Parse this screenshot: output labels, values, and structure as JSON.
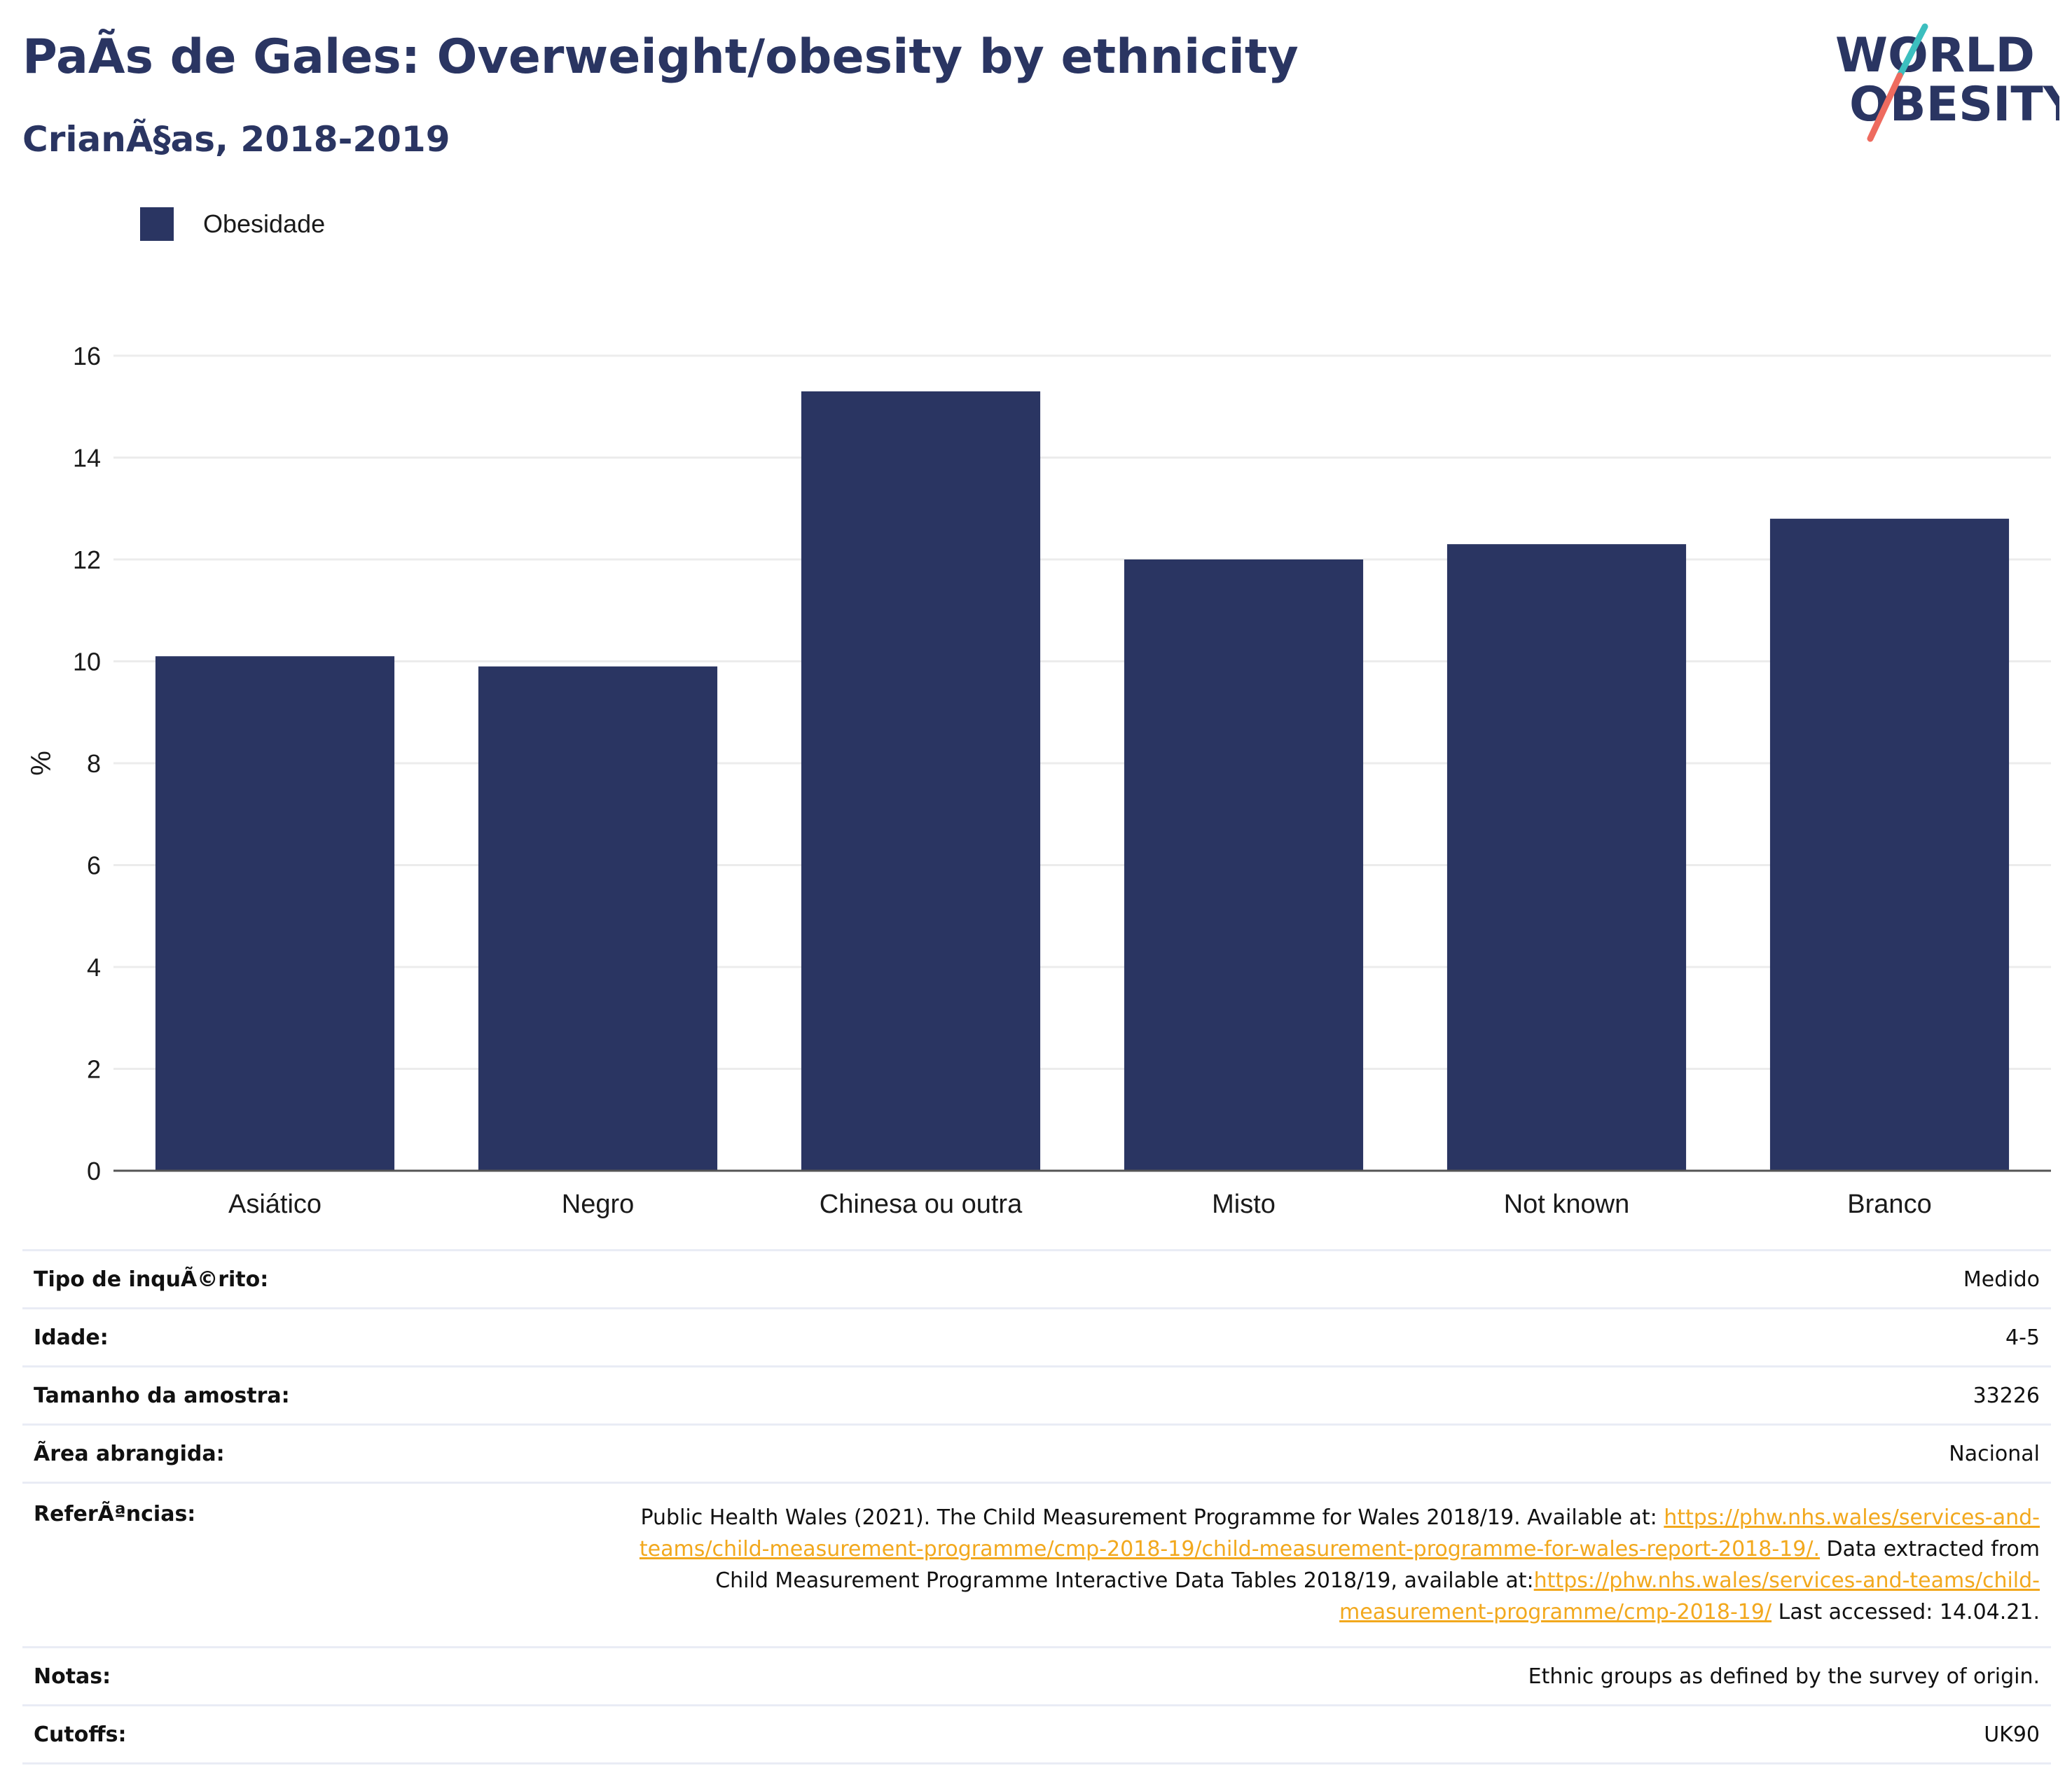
{
  "header": {
    "title": "PaÃs de Gales: Overweight/obesity by ethnicity",
    "subtitle": "CrianÃ§as, 2018-2019"
  },
  "logo": {
    "line1": "WORLD",
    "line2": "OBESITY"
  },
  "colors": {
    "bar": "#2a3562",
    "title": "#2a3562",
    "link": "#f2a81d",
    "grid": "#ececec"
  },
  "chart_data": {
    "type": "bar",
    "categories": [
      "Asiático",
      "Negro",
      "Chinesa ou outra",
      "Misto",
      "Not known",
      "Branco"
    ],
    "series": [
      {
        "name": "Obesidade",
        "values": [
          10.1,
          9.9,
          15.3,
          12.0,
          12.3,
          12.8
        ]
      }
    ],
    "ylabel": "%",
    "xlabel": "",
    "ylim": [
      0,
      16
    ],
    "yticks": [
      0,
      2,
      4,
      6,
      8,
      10,
      12,
      14,
      16
    ],
    "grid": true,
    "legend": "top-left"
  },
  "meta": {
    "survey_type": {
      "label": "Tipo de inquÃ©rito:",
      "value": "Medido"
    },
    "age": {
      "label": "Idade:",
      "value": "4-5"
    },
    "sample_size": {
      "label": "Tamanho da amostra:",
      "value": "33226"
    },
    "area": {
      "label": "Ãrea abrangida:",
      "value": "Nacional"
    },
    "references": {
      "label": "ReferÃªncias:",
      "text1": "Public Health Wales (2021). The Child Measurement Programme for Wales 2018/19. Available at: ",
      "link1a": "https://phw.nhs.wales/services-and-",
      "link1b": "teams/child-measurement-programme/cmp-2018-19/child-measurement-programme-for-wales-report-2018-19/.",
      "text2": " Data extracted from",
      "text3": "Child Measurement Programme Interactive Data Tables 2018/19, available at:",
      "link2a": "https://phw.nhs.wales/services-and-teams/child-",
      "link2b": "measurement-programme/cmp-2018-19/",
      "text4": " Last accessed: 14.04.21."
    },
    "notes": {
      "label": "Notas:",
      "value": "Ethnic groups as defined by the survey of origin."
    },
    "cutoffs": {
      "label": "Cutoffs:",
      "value": "UK90"
    }
  }
}
